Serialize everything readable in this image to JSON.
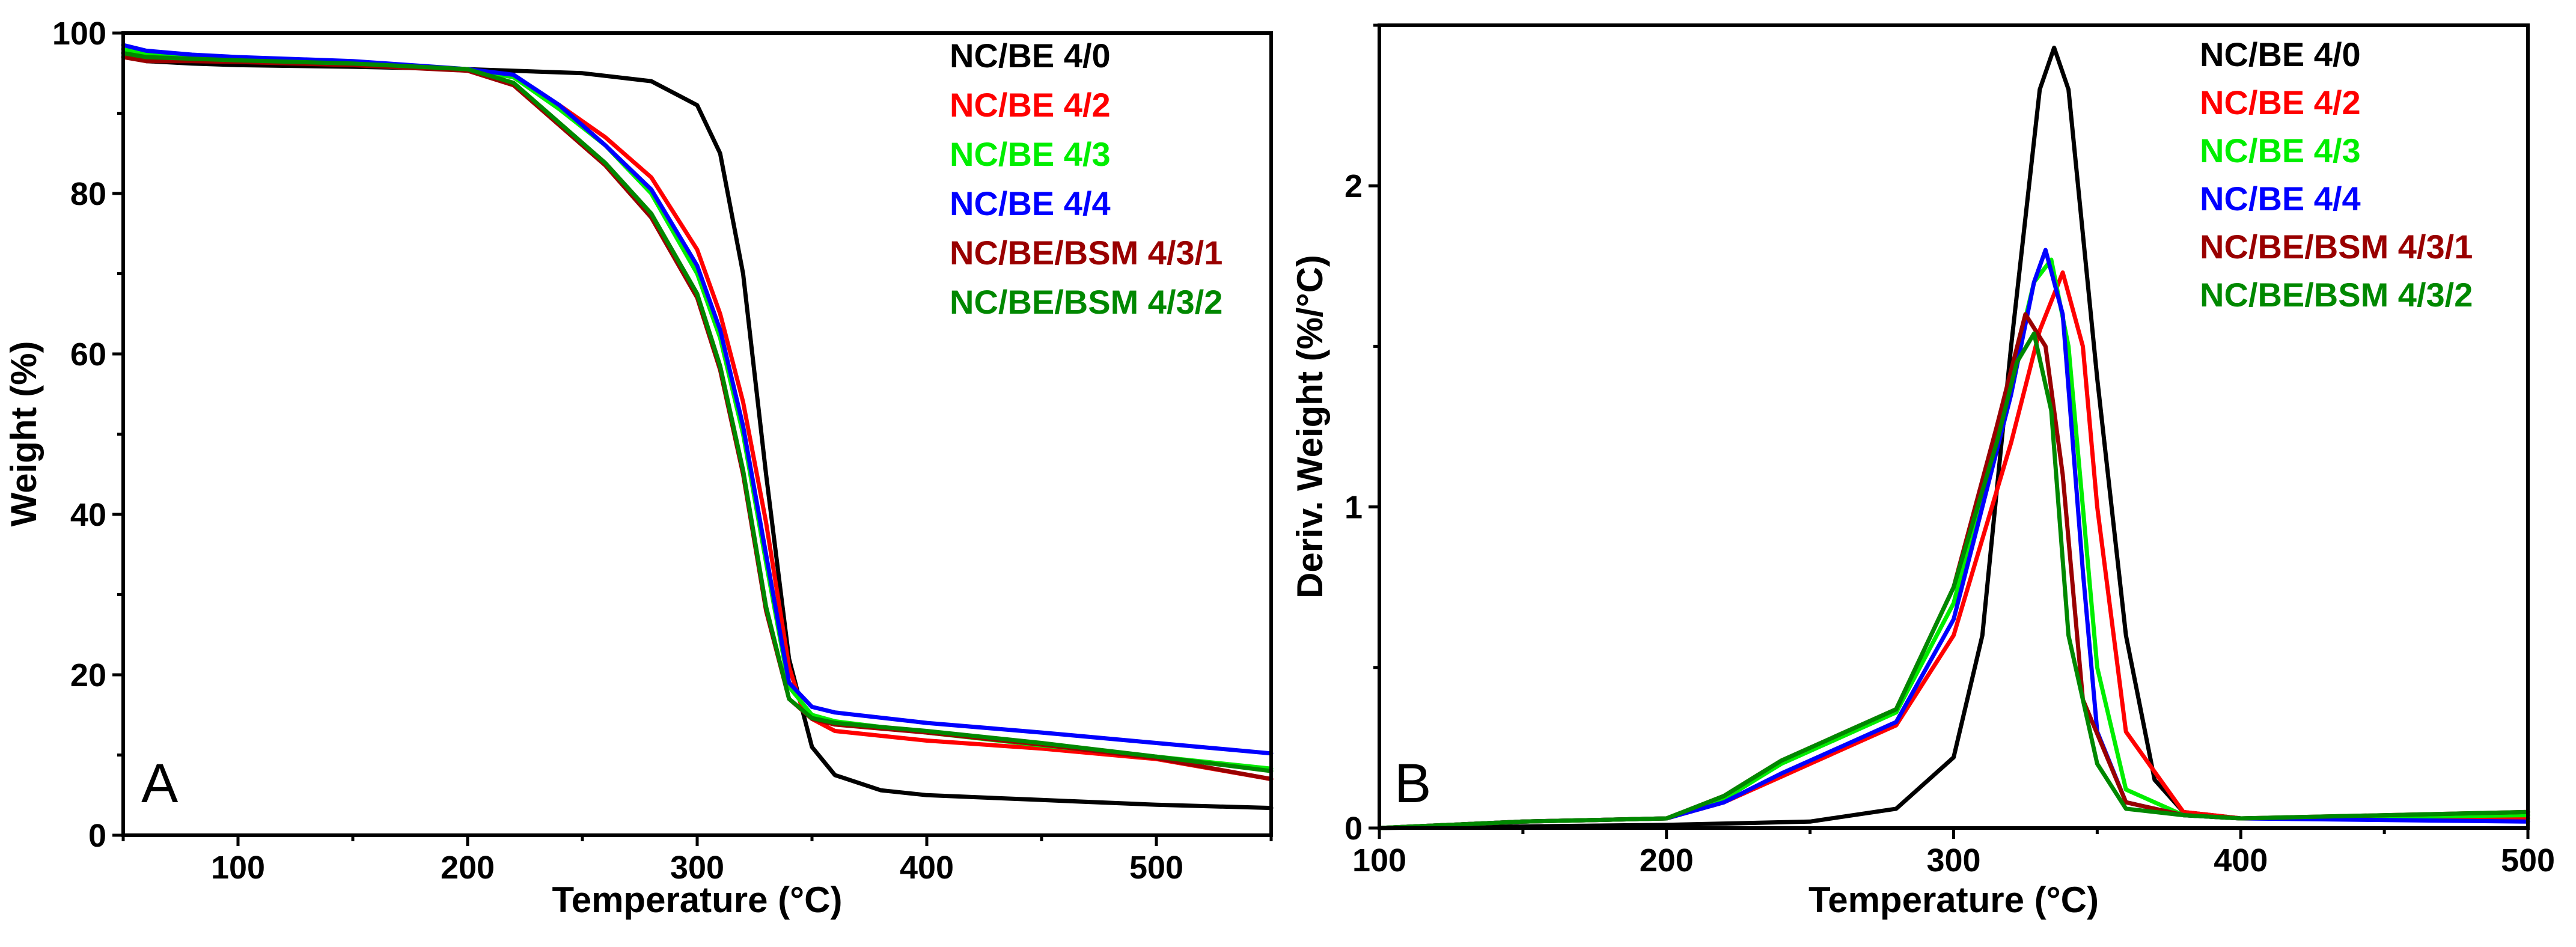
{
  "colors": {
    "NC/BE 4/0": "#000000",
    "NC/BE 4/2": "#ff0000",
    "NC/BE 4/3": "#00ee00",
    "NC/BE 4/4": "#0000ff",
    "NC/BE/BSM 4/3/1": "#990000",
    "NC/BE/BSM 4/3/2": "#008800"
  },
  "chart_data": [
    {
      "panel": "A",
      "type": "line",
      "title": "",
      "xlabel": "Temperature (°C)",
      "ylabel": "Weight (%)",
      "xlim": [
        50,
        550
      ],
      "ylim": [
        0,
        100
      ],
      "xticks": [
        100,
        200,
        300,
        400,
        500
      ],
      "yticks": [
        0,
        20,
        40,
        60,
        80,
        100
      ],
      "legend": [
        "NC/BE 4/0",
        "NC/BE 4/2",
        "NC/BE 4/3",
        "NC/BE 4/4",
        "NC/BE/BSM 4/3/1",
        "NC/BE/BSM 4/3/2"
      ],
      "legend_position": "top-right",
      "series": [
        {
          "name": "NC/BE 4/0",
          "x": [
            50,
            60,
            80,
            100,
            150,
            200,
            250,
            280,
            300,
            310,
            320,
            330,
            340,
            350,
            360,
            380,
            400,
            450,
            500,
            550
          ],
          "y": [
            97.5,
            96.5,
            96.2,
            96.0,
            95.8,
            95.5,
            95.0,
            94.0,
            91.0,
            85.0,
            70.0,
            45.0,
            22.0,
            11.0,
            7.5,
            5.6,
            5.0,
            4.4,
            3.8,
            3.4
          ]
        },
        {
          "name": "NC/BE 4/2",
          "x": [
            50,
            60,
            80,
            100,
            150,
            200,
            220,
            240,
            260,
            280,
            300,
            310,
            320,
            330,
            340,
            345,
            350,
            360,
            400,
            450,
            500,
            550
          ],
          "y": [
            98.0,
            97.3,
            97.0,
            96.8,
            96.2,
            95.5,
            94.5,
            91.0,
            87.0,
            82.0,
            73.0,
            65.0,
            54.0,
            39.0,
            21.0,
            16.5,
            14.5,
            13.0,
            11.8,
            10.8,
            9.5,
            7.0
          ]
        },
        {
          "name": "NC/BE 4/3",
          "x": [
            50,
            60,
            80,
            100,
            150,
            200,
            220,
            240,
            260,
            280,
            300,
            310,
            320,
            330,
            340,
            350,
            360,
            400,
            450,
            500,
            550
          ],
          "y": [
            98.0,
            97.3,
            97.0,
            96.8,
            96.2,
            95.5,
            94.5,
            90.5,
            86.0,
            80.0,
            70.0,
            62.0,
            50.0,
            34.0,
            18.5,
            15.0,
            14.2,
            12.8,
            11.2,
            9.8,
            8.3
          ]
        },
        {
          "name": "NC/BE 4/4",
          "x": [
            50,
            60,
            80,
            100,
            150,
            200,
            220,
            240,
            260,
            280,
            300,
            310,
            320,
            330,
            340,
            350,
            360,
            400,
            450,
            500,
            550
          ],
          "y": [
            98.5,
            97.8,
            97.3,
            97.0,
            96.5,
            95.5,
            94.8,
            91.0,
            86.0,
            80.5,
            71.0,
            63.0,
            51.0,
            35.0,
            19.0,
            16.0,
            15.3,
            14.0,
            12.8,
            11.5,
            10.2
          ]
        },
        {
          "name": "NC/BE/BSM 4/3/1",
          "x": [
            50,
            60,
            80,
            100,
            150,
            200,
            220,
            240,
            260,
            280,
            300,
            310,
            320,
            330,
            340,
            350,
            360,
            400,
            450,
            500,
            550
          ],
          "y": [
            97.0,
            96.5,
            96.5,
            96.4,
            96.0,
            95.3,
            93.5,
            88.5,
            83.5,
            77.0,
            67.0,
            58.0,
            45.0,
            28.0,
            17.0,
            14.5,
            13.8,
            12.8,
            11.3,
            9.6,
            7.0
          ]
        },
        {
          "name": "NC/BE/BSM 4/3/2",
          "x": [
            50,
            60,
            80,
            100,
            150,
            200,
            220,
            240,
            260,
            280,
            300,
            310,
            320,
            330,
            340,
            350,
            360,
            400,
            450,
            500,
            550
          ],
          "y": [
            97.5,
            97.0,
            96.8,
            96.6,
            96.2,
            95.5,
            93.8,
            88.8,
            83.8,
            77.5,
            67.5,
            58.5,
            45.5,
            28.5,
            17.0,
            14.6,
            14.0,
            13.0,
            11.5,
            9.8,
            8.0
          ]
        }
      ],
      "annotation": "A"
    },
    {
      "panel": "B",
      "type": "line",
      "title": "",
      "xlabel": "Temperature (°C)",
      "ylabel": "Deriv. Weight (%/°C)",
      "xlim": [
        100,
        500
      ],
      "ylim": [
        0,
        2.5
      ],
      "xticks": [
        100,
        200,
        300,
        400,
        500
      ],
      "yticks": [
        0,
        1,
        2
      ],
      "legend": [
        "NC/BE 4/0",
        "NC/BE 4/2",
        "NC/BE 4/3",
        "NC/BE 4/4",
        "NC/BE/BSM 4/3/1",
        "NC/BE/BSM 4/3/2"
      ],
      "legend_position": "top-right",
      "series": [
        {
          "name": "NC/BE 4/0",
          "x": [
            100,
            200,
            250,
            280,
            300,
            310,
            320,
            330,
            335,
            340,
            350,
            360,
            370,
            380,
            400,
            500
          ],
          "y": [
            0.0,
            0.01,
            0.02,
            0.06,
            0.22,
            0.6,
            1.5,
            2.3,
            2.43,
            2.3,
            1.4,
            0.6,
            0.15,
            0.05,
            0.03,
            0.04
          ]
        },
        {
          "name": "NC/BE 4/2",
          "x": [
            100,
            150,
            200,
            220,
            240,
            260,
            280,
            300,
            320,
            330,
            338,
            345,
            350,
            360,
            380,
            400,
            500
          ],
          "y": [
            0.0,
            0.02,
            0.03,
            0.08,
            0.16,
            0.24,
            0.32,
            0.6,
            1.2,
            1.55,
            1.73,
            1.5,
            1.0,
            0.3,
            0.05,
            0.03,
            0.03
          ]
        },
        {
          "name": "NC/BE 4/3",
          "x": [
            100,
            150,
            200,
            220,
            240,
            260,
            280,
            300,
            320,
            328,
            334,
            340,
            350,
            360,
            380,
            400,
            500
          ],
          "y": [
            0.0,
            0.02,
            0.03,
            0.09,
            0.2,
            0.28,
            0.36,
            0.7,
            1.4,
            1.7,
            1.77,
            1.5,
            0.5,
            0.12,
            0.04,
            0.03,
            0.04
          ]
        },
        {
          "name": "NC/BE 4/4",
          "x": [
            100,
            150,
            200,
            220,
            240,
            260,
            280,
            300,
            320,
            328,
            332,
            338,
            345,
            350,
            360,
            380,
            400,
            500
          ],
          "y": [
            0.0,
            0.02,
            0.03,
            0.08,
            0.17,
            0.25,
            0.33,
            0.65,
            1.35,
            1.7,
            1.8,
            1.6,
            0.8,
            0.3,
            0.08,
            0.04,
            0.03,
            0.02
          ]
        },
        {
          "name": "NC/BE/BSM 4/3/1",
          "x": [
            100,
            150,
            200,
            220,
            240,
            260,
            280,
            300,
            315,
            325,
            332,
            338,
            345,
            360,
            380,
            400,
            500
          ],
          "y": [
            0.0,
            0.02,
            0.03,
            0.1,
            0.21,
            0.29,
            0.37,
            0.75,
            1.25,
            1.6,
            1.5,
            1.1,
            0.4,
            0.08,
            0.04,
            0.03,
            0.05
          ]
        },
        {
          "name": "NC/BE/BSM 4/3/2",
          "x": [
            100,
            150,
            200,
            220,
            240,
            260,
            280,
            300,
            315,
            322,
            328,
            334,
            340,
            350,
            360,
            380,
            400,
            500
          ],
          "y": [
            0.0,
            0.02,
            0.03,
            0.1,
            0.21,
            0.29,
            0.37,
            0.75,
            1.2,
            1.45,
            1.54,
            1.3,
            0.6,
            0.2,
            0.06,
            0.04,
            0.03,
            0.05
          ]
        }
      ],
      "annotation": "B"
    }
  ]
}
